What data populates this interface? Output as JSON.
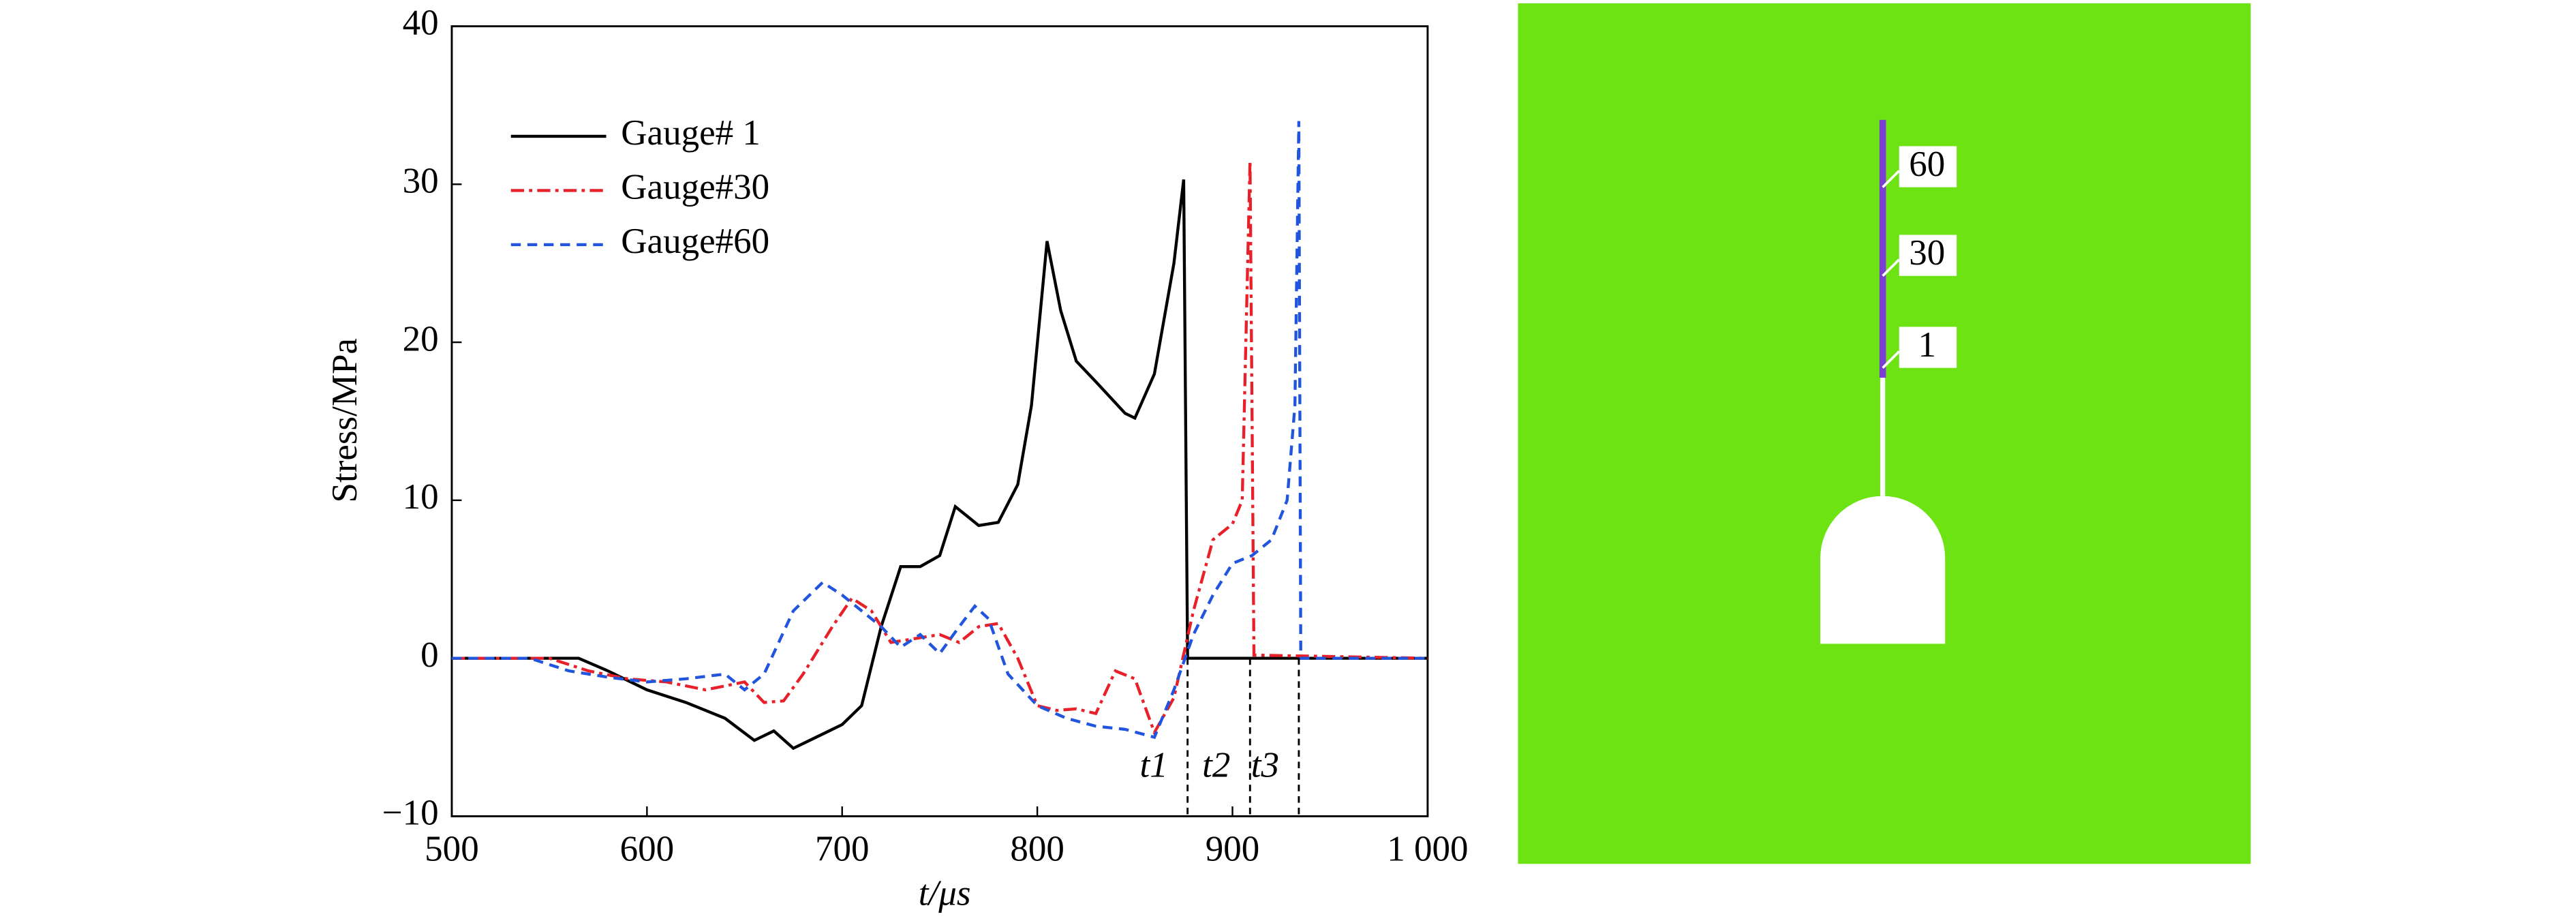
{
  "chart_data": {
    "type": "line",
    "x_label": "t/μs",
    "y_label": "Stress/MPa",
    "xlim": [
      500,
      1000
    ],
    "ylim": [
      -10,
      40
    ],
    "xticks": [
      500,
      600,
      700,
      800,
      900,
      {
        "value": 1000,
        "label": "1 000"
      }
    ],
    "yticks": [
      {
        "value": -10,
        "label": "−10"
      },
      0,
      10,
      20,
      30,
      40
    ],
    "legend": "upper left",
    "series": [
      {
        "name": "Gauge# 1",
        "color": "#000000",
        "dash": "solid",
        "x": [
          500,
          565,
          580,
          600,
          620,
          640,
          655,
          665,
          675,
          690,
          700,
          710,
          720,
          730,
          740,
          750,
          758,
          770,
          780,
          790,
          797,
          805,
          812,
          820,
          830,
          845,
          850,
          860,
          870,
          875,
          877,
          1000
        ],
        "values": [
          0,
          0,
          -0.8,
          -2,
          -2.8,
          -3.8,
          -5.2,
          -4.6,
          -5.7,
          -4.8,
          -4.2,
          -3,
          2,
          5.8,
          5.8,
          6.5,
          9.6,
          8.4,
          8.6,
          11,
          16,
          26.4,
          22,
          18.8,
          17.5,
          15.5,
          15.2,
          18,
          25,
          30.3,
          0,
          0
        ]
      },
      {
        "name": "Gauge#30",
        "color": "#e8202a",
        "dash": "dashdot",
        "x": [
          500,
          550,
          570,
          590,
          610,
          630,
          650,
          660,
          670,
          680,
          695,
          705,
          715,
          725,
          735,
          750,
          760,
          770,
          780,
          790,
          800,
          810,
          820,
          830,
          840,
          850,
          860,
          870,
          880,
          890,
          900,
          905,
          909,
          911,
          1000
        ],
        "values": [
          0,
          0,
          -0.8,
          -1.3,
          -1.5,
          -2,
          -1.5,
          -2.8,
          -2.7,
          -1,
          2,
          3.8,
          3,
          1,
          1.2,
          1.5,
          1,
          2,
          2.2,
          0,
          -3,
          -3.3,
          -3.2,
          -3.5,
          -0.8,
          -1.3,
          -4.7,
          -2.5,
          3,
          7.5,
          8.5,
          10,
          31.5,
          0.2,
          0
        ]
      },
      {
        "name": "Gauge#60",
        "color": "#2255dd",
        "dash": "dashed",
        "x": [
          500,
          540,
          560,
          580,
          600,
          620,
          640,
          650,
          660,
          675,
          690,
          700,
          710,
          720,
          730,
          740,
          750,
          760,
          768,
          775,
          785,
          800,
          815,
          830,
          845,
          860,
          870,
          880,
          890,
          900,
          910,
          920,
          928,
          932,
          934,
          935,
          1000
        ],
        "values": [
          0,
          0,
          -0.8,
          -1.2,
          -1.5,
          -1.3,
          -1,
          -2,
          -1,
          3,
          4.8,
          4,
          3,
          2,
          0.7,
          1.5,
          0.3,
          2,
          3.3,
          2.5,
          -1,
          -3,
          -3.8,
          -4.3,
          -4.5,
          -5,
          -2,
          1.5,
          4,
          6,
          6.5,
          7.5,
          10,
          16,
          34,
          0,
          0
        ]
      }
    ],
    "annotations": [
      {
        "text": "t1",
        "x": 877
      },
      {
        "text": "t2",
        "x": 909
      },
      {
        "text": "t3",
        "x": 934
      }
    ]
  },
  "diagram": {
    "gauge_labels": [
      "60",
      "30",
      "1"
    ]
  }
}
